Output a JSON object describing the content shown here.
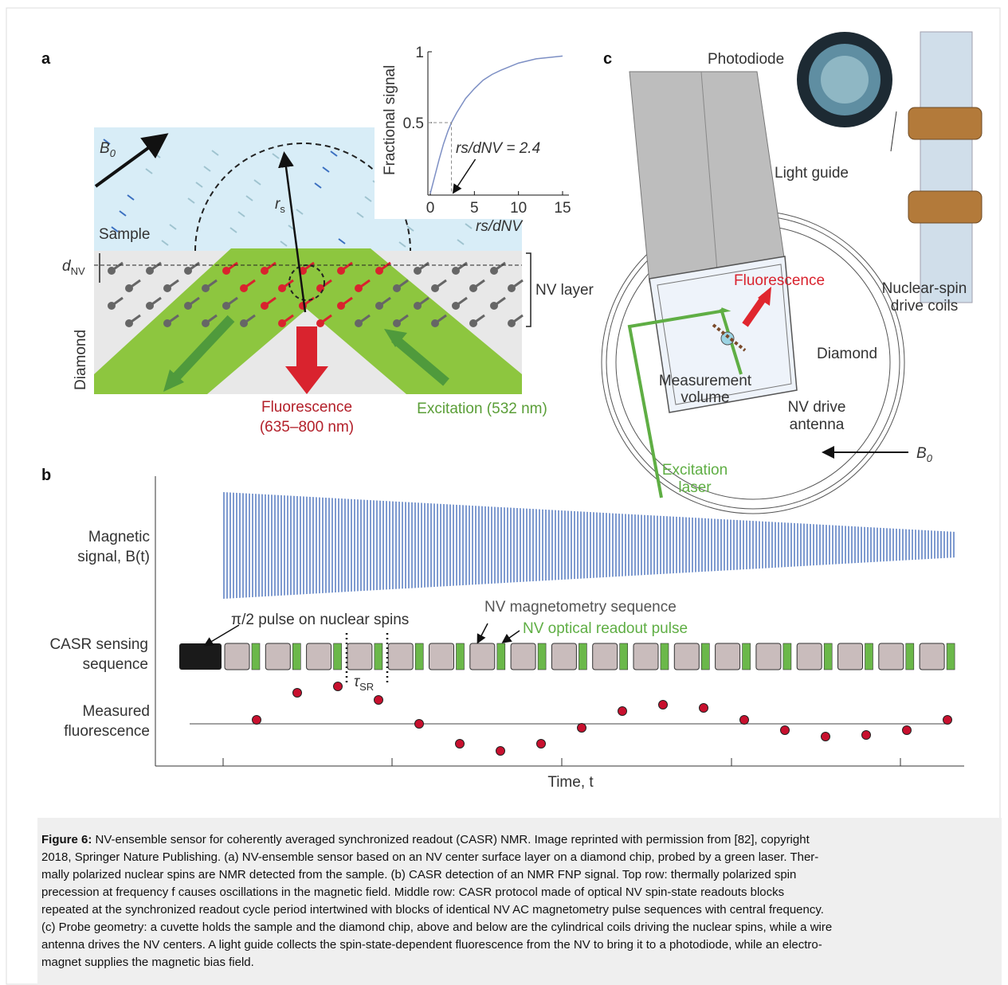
{
  "figure": {
    "panel_a": {
      "label": "a",
      "b0": {
        "main": "B",
        "sub": "0"
      },
      "sample": "Sample",
      "diamond": "Diamond",
      "dnv": {
        "main": "d",
        "sub": "NV"
      },
      "rs": {
        "main": "r",
        "sub": "s"
      },
      "nv_layer": "NV layer",
      "fluorescence": [
        "Fluorescence",
        "(635–800 nm)"
      ],
      "excitation": "Excitation (532 nm)",
      "inset": {
        "ylabel": "Fractional signal",
        "xlabel": "rs/dNV",
        "xlim": [
          0,
          15
        ],
        "ylim": [
          0,
          1
        ],
        "xticks": [
          0,
          5,
          10,
          15
        ],
        "yticks": [
          0.5,
          1
        ],
        "curve": {
          "x": [
            0,
            0.5,
            1,
            1.5,
            2,
            2.4,
            3,
            4,
            5,
            6,
            7,
            8,
            10,
            12,
            15
          ],
          "y": [
            0,
            0.12,
            0.24,
            0.35,
            0.44,
            0.5,
            0.57,
            0.67,
            0.74,
            0.8,
            0.84,
            0.87,
            0.92,
            0.95,
            0.97
          ]
        },
        "marker": {
          "x": 2.4,
          "y": 0.5
        },
        "annotation": "rs/dNV = 2.4"
      }
    },
    "panel_b": {
      "label": "b",
      "rows": [
        [
          "Magnetic",
          "signal, B(t)"
        ],
        [
          "CASR sensing",
          "sequence"
        ],
        [
          "Measured",
          "fluorescence"
        ]
      ],
      "pulse_label": "π/2 pulse on nuclear spins",
      "magnetometry_label": "NV magnetometry sequence",
      "readout_label": "NV optical readout pulse",
      "tau": {
        "main": "τ",
        "sub": "SR"
      },
      "xlabel": "Time, t",
      "fluorescence_points": [
        0.1,
        0.78,
        0.94,
        0.6,
        0,
        -0.5,
        -0.68,
        -0.5,
        -0.1,
        0.32,
        0.48,
        0.4,
        0.1,
        -0.16,
        -0.32,
        -0.28,
        -0.16,
        0.1
      ]
    },
    "panel_c": {
      "label": "c",
      "photodiode": "Photodiode",
      "light_guide": "Light guide",
      "fluorescence": "Fluorescence",
      "coils": [
        "Nuclear-spin",
        "drive coils"
      ],
      "diamond": "Diamond",
      "measurement": [
        "Measurement",
        "volume"
      ],
      "antenna": [
        "NV drive",
        "antenna"
      ],
      "laser": [
        "Excitation",
        "laser"
      ],
      "b0": {
        "main": "B",
        "sub": "0"
      }
    },
    "caption": {
      "label": "Figure 6:",
      "lines": [
        "NV-ensemble sensor for coherently averaged synchronized readout (CASR) NMR. Image reprinted with permission from [82], copyright",
        "2018, Springer Nature Publishing. (a) NV-ensemble sensor based on an NV center surface layer on a diamond chip, probed by a green laser. Ther-",
        "mally polarized nuclear spins are NMR detected from the sample. (b) CASR detection of an NMR FNP signal. Top row: thermally polarized spin",
        "precession at frequency f causes oscillations in the magnetic field. Middle row: CASR protocol made of optical NV spin-state readouts blocks",
        "repeated at the synchronized readout cycle period intertwined with blocks of identical NV AC magnetometry pulse sequences with central frequency.",
        "(c) Probe geometry: a cuvette holds the sample and the diamond chip, above and below are the cylindrical coils driving the nuclear spins, while a wire",
        "antenna drives the NV centers. A light guide collects the spin-state-dependent fluorescence from the NV to bring it to a photodiode, while an electro-",
        "magnet supplies the magnetic bias field."
      ]
    }
  }
}
